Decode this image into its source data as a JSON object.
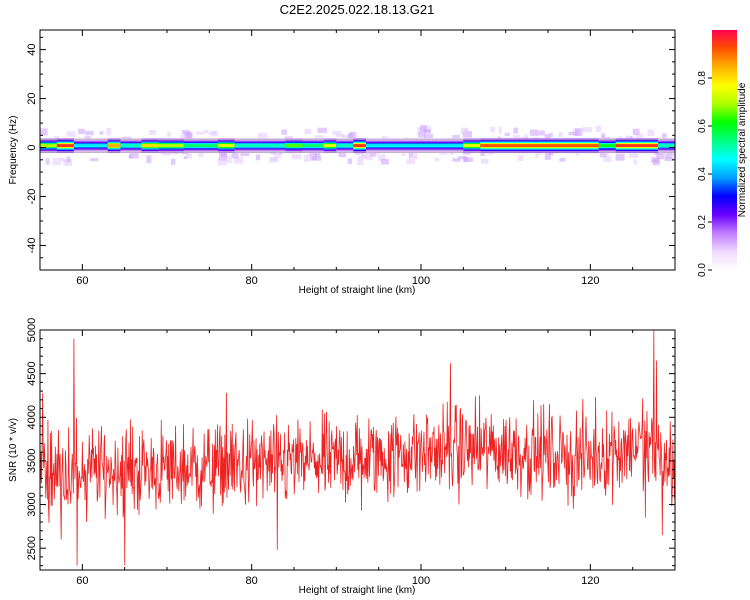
{
  "title": "C2E2.2025.022.18.13.G21",
  "chart_data": [
    {
      "type": "heatmap",
      "xlabel": "Height of straight line (km)",
      "ylabel": "Frequency (Hz)",
      "xlim": [
        55,
        130
      ],
      "ylim": [
        -50,
        48
      ],
      "xticks": [
        60,
        80,
        100,
        120
      ],
      "yticks": [
        40,
        20,
        0,
        -20,
        -40
      ],
      "colorbar": {
        "label": "Normalized spectral amplitude",
        "range": [
          0,
          1
        ],
        "ticks": [
          0.0,
          0.2,
          0.4,
          0.6,
          0.8
        ],
        "colors": [
          "#ffffff",
          "#f0d8ff",
          "#c07cff",
          "#6a00ff",
          "#0000ff",
          "#00a0ff",
          "#00ffff",
          "#00ff80",
          "#00ff00",
          "#b0ff00",
          "#ffff00",
          "#ffb000",
          "#ff5000",
          "#ff0050"
        ]
      },
      "band_center_hz": 0.8,
      "band_segments": [
        {
          "x": [
            55,
            57
          ],
          "peak": 0.7
        },
        {
          "x": [
            57,
            59
          ],
          "peak": 0.95
        },
        {
          "x": [
            59,
            63
          ],
          "peak": 0.45
        },
        {
          "x": [
            63,
            64.5
          ],
          "peak": 0.85
        },
        {
          "x": [
            64.5,
            67
          ],
          "peak": 0.5
        },
        {
          "x": [
            67,
            69
          ],
          "peak": 0.8
        },
        {
          "x": [
            69,
            72
          ],
          "peak": 0.7
        },
        {
          "x": [
            72,
            76
          ],
          "peak": 0.55
        },
        {
          "x": [
            76,
            78
          ],
          "peak": 0.75
        },
        {
          "x": [
            78,
            84
          ],
          "peak": 0.5
        },
        {
          "x": [
            84,
            86
          ],
          "peak": 0.65
        },
        {
          "x": [
            86,
            88.5
          ],
          "peak": 0.55
        },
        {
          "x": [
            88.5,
            90
          ],
          "peak": 0.75
        },
        {
          "x": [
            90,
            92
          ],
          "peak": 0.5
        },
        {
          "x": [
            92,
            93.5
          ],
          "peak": 0.95
        },
        {
          "x": [
            93.5,
            105
          ],
          "peak": 0.45
        },
        {
          "x": [
            105,
            107
          ],
          "peak": 0.75
        },
        {
          "x": [
            107,
            121
          ],
          "peak": 0.92
        },
        {
          "x": [
            121,
            123
          ],
          "peak": 0.6
        },
        {
          "x": [
            123,
            128
          ],
          "peak": 0.95
        },
        {
          "x": [
            128,
            130
          ],
          "peak": 0.5
        }
      ]
    },
    {
      "type": "line",
      "xlabel": "Height of straight line (km)",
      "ylabel": "SNR (10 * v/v)",
      "xlim": [
        55,
        130
      ],
      "ylim": [
        2250,
        5000
      ],
      "xticks": [
        60,
        80,
        100,
        120
      ],
      "yticks": [
        5000,
        4500,
        4000,
        3500,
        3000,
        2500
      ],
      "color": "#ee2222",
      "x_range": [
        55,
        130
      ],
      "n_points": 1200,
      "baseline_trend": [
        {
          "x": 55,
          "y": 3400
        },
        {
          "x": 70,
          "y": 3400
        },
        {
          "x": 90,
          "y": 3500
        },
        {
          "x": 105,
          "y": 3650
        },
        {
          "x": 120,
          "y": 3550
        },
        {
          "x": 126,
          "y": 3700
        },
        {
          "x": 130,
          "y": 3400
        }
      ],
      "noise_amplitude": 330,
      "notable_points": [
        {
          "x": 55.3,
          "y": 4280
        },
        {
          "x": 57.5,
          "y": 2600
        },
        {
          "x": 59.0,
          "y": 4900
        },
        {
          "x": 59.4,
          "y": 2300
        },
        {
          "x": 60.5,
          "y": 2800
        },
        {
          "x": 65.0,
          "y": 2300
        },
        {
          "x": 77.0,
          "y": 4280
        },
        {
          "x": 83.0,
          "y": 2480
        },
        {
          "x": 93.0,
          "y": 2930
        },
        {
          "x": 103.5,
          "y": 4620
        },
        {
          "x": 104.5,
          "y": 3000
        },
        {
          "x": 118.0,
          "y": 2950
        },
        {
          "x": 126.5,
          "y": 2850
        },
        {
          "x": 127.5,
          "y": 5000
        },
        {
          "x": 127.8,
          "y": 4650
        },
        {
          "x": 128.5,
          "y": 2650
        },
        {
          "x": 129.5,
          "y": 3700
        }
      ]
    }
  ]
}
